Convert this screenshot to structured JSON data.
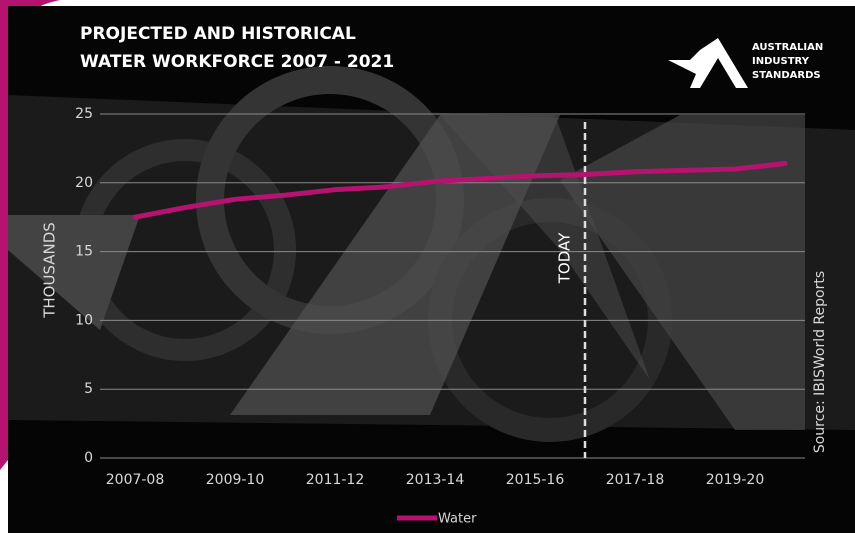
{
  "chart_data": {
    "type": "line",
    "title": [
      "PROJECTED AND HISTORICAL",
      "WATER WORKFORCE 2007 - 2021"
    ],
    "logo": [
      "AUSTRALIAN",
      "INDUSTRY",
      "STANDARDS"
    ],
    "y_label": "THOUSANDS",
    "annotation": "TODAY",
    "source": "Source: IBISWorld Reports",
    "categories": [
      "2007-08",
      null,
      "2009-10",
      null,
      "2011-12",
      null,
      "2013-14",
      null,
      "2015-16",
      null,
      "2017-18",
      null,
      "2019-20",
      null
    ],
    "series": [
      {
        "name": "Water",
        "color": "#b5136f",
        "values": [
          17.5,
          18.2,
          18.8,
          19.1,
          19.5,
          19.7,
          20.1,
          20.3,
          20.5,
          20.6,
          20.8,
          20.9,
          21.0,
          21.4
        ]
      }
    ],
    "ylim": [
      0,
      25
    ],
    "yticks": [
      0,
      5,
      10,
      15,
      20,
      25
    ],
    "grid": true
  }
}
